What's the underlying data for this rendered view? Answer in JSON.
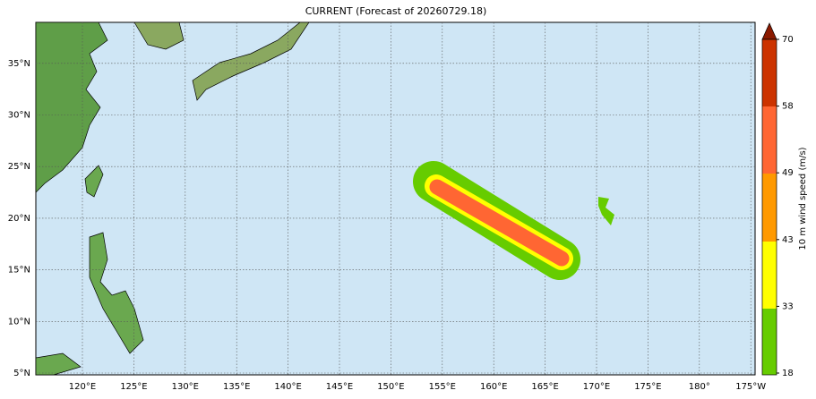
{
  "map": {
    "title": "CURRENT (Forecast of 20260729.18)",
    "lon_labels": [
      "120°E",
      "125°E",
      "130°E",
      "135°E",
      "140°E",
      "145°E",
      "150°E",
      "155°E",
      "160°E",
      "165°E",
      "170°E",
      "175°E",
      "180°",
      "175°W"
    ],
    "lat_labels": [
      "5°N",
      "10°N",
      "15°N",
      "20°N",
      "25°N",
      "30°N",
      "35°N"
    ]
  },
  "colorbar": {
    "label": "10 m wind speed (m/s)",
    "ticks": [
      18,
      33,
      43,
      49,
      58,
      70
    ]
  }
}
